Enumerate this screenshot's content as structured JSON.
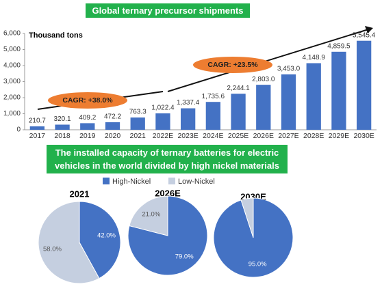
{
  "chart_data": [
    {
      "type": "bar",
      "title": "Global ternary precursor shipments",
      "y_label": "Thousand tons",
      "categories": [
        "2017",
        "2018",
        "2019",
        "2020",
        "2021",
        "2022E",
        "2023E",
        "2024E",
        "2025E",
        "2026E",
        "2027E",
        "2028E",
        "2029E",
        "2030E"
      ],
      "values": [
        210.7,
        320.1,
        409.2,
        472.2,
        763.3,
        1022.4,
        1337.4,
        1735.6,
        2244.1,
        2803.0,
        3453.0,
        4148.9,
        4859.5,
        5545.4
      ],
      "value_labels": [
        "210.7",
        "320.1",
        "409.2",
        "472.2",
        "763.3",
        "1,022.4",
        "1,337.4",
        "1,735.6",
        "2,244.1",
        "2,803.0",
        "3,453.0",
        "4,148.9",
        "4,859.5",
        "5,545.4"
      ],
      "color": "#4472c4",
      "ylim": [
        0,
        6000
      ],
      "yticks": [
        0,
        {
          "value": 1000,
          "label": "1,000"
        },
        {
          "value": 2000,
          "label": "2,000"
        },
        {
          "value": 3000,
          "label": "3,000"
        },
        {
          "value": 4000,
          "label": "4,000"
        },
        {
          "value": 5000,
          "label": "5,000"
        },
        {
          "value": 6000,
          "label": "6,000"
        }
      ],
      "annotations": [
        "CAGR: +38.0%",
        "CAGR: +23.5%"
      ]
    },
    {
      "type": "pie",
      "title": "2021",
      "categories": [
        "High-Nickel",
        "Low-Nickel"
      ],
      "values": [
        42.0,
        58.0
      ],
      "value_labels": [
        "42.0%",
        "58.0%"
      ],
      "colors": [
        "#4472c4",
        "#c5cfe0"
      ]
    },
    {
      "type": "pie",
      "title": "2026E",
      "categories": [
        "High-Nickel",
        "Low-Nickel"
      ],
      "values": [
        79.0,
        21.0
      ],
      "value_labels": [
        "79.0%",
        "21.0%"
      ],
      "colors": [
        "#4472c4",
        "#c5cfe0"
      ]
    },
    {
      "type": "pie",
      "title": "2030E",
      "categories": [
        "High-Nickel",
        "Low-Nickel"
      ],
      "values": [
        95.0,
        5.0
      ],
      "value_labels": [
        "95.0%",
        ""
      ],
      "colors": [
        "#4472c4",
        "#c5cfe0"
      ]
    }
  ],
  "section_title": "The installed capacity of ternary batteries for electric vehicles in the world divided by high nickel materials"
}
